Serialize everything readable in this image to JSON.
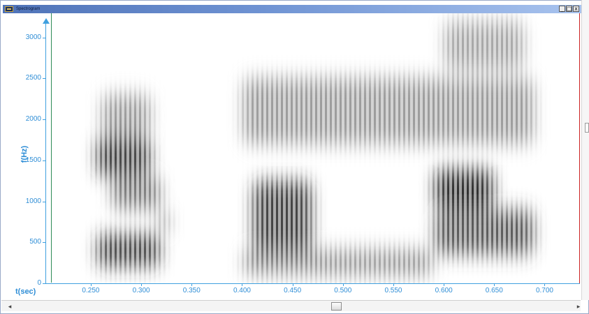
{
  "window": {
    "title": "Spectrogram",
    "minimize_symbol": "_",
    "maximize_symbol": "□",
    "close_symbol": "x",
    "icon": "spectrogram-app-icon"
  },
  "chart_data": {
    "type": "heatmap",
    "subtype": "spectrogram",
    "colormap": "grayscale (white = low energy, black = high energy)",
    "xlabel": "t(sec)",
    "ylabel": "f(Hz)",
    "xlim": [
      0.205,
      0.735
    ],
    "ylim": [
      0,
      3200
    ],
    "x_ticks": [
      "0.250",
      "0.300",
      "0.350",
      "0.400",
      "0.450",
      "0.500",
      "0.550",
      "0.600",
      "0.650",
      "0.700"
    ],
    "x_tick_values": [
      0.25,
      0.3,
      0.35,
      0.4,
      0.45,
      0.5,
      0.55,
      0.6,
      0.65,
      0.7
    ],
    "y_ticks": [
      "0",
      "500",
      "1000",
      "1500",
      "2000",
      "2500",
      "3000"
    ],
    "y_tick_values": [
      0,
      500,
      1000,
      1500,
      2000,
      2500,
      3000
    ],
    "grid": false,
    "energy_regions": [
      {
        "t": [
          0.255,
          0.32
        ],
        "f": [
          200,
          600
        ],
        "intensity": 0.85
      },
      {
        "t": [
          0.255,
          0.31
        ],
        "f": [
          1300,
          1800
        ],
        "intensity": 0.85
      },
      {
        "t": [
          0.27,
          0.32
        ],
        "f": [
          900,
          1300
        ],
        "intensity": 0.6
      },
      {
        "t": [
          0.26,
          0.31
        ],
        "f": [
          1800,
          2300
        ],
        "intensity": 0.45
      },
      {
        "t": [
          0.315,
          0.33
        ],
        "f": [
          650,
          850
        ],
        "intensity": 0.55
      },
      {
        "t": [
          0.41,
          0.47
        ],
        "f": [
          300,
          1250
        ],
        "intensity": 0.85
      },
      {
        "t": [
          0.4,
          0.59
        ],
        "f": [
          100,
          400
        ],
        "intensity": 0.5
      },
      {
        "t": [
          0.4,
          0.69
        ],
        "f": [
          1700,
          2500
        ],
        "intensity": 0.45
      },
      {
        "t": [
          0.59,
          0.65
        ],
        "f": [
          900,
          1400
        ],
        "intensity": 0.95
      },
      {
        "t": [
          0.59,
          0.69
        ],
        "f": [
          350,
          900
        ],
        "intensity": 0.75
      },
      {
        "t": [
          0.6,
          0.68
        ],
        "f": [
          2600,
          3200
        ],
        "intensity": 0.4
      }
    ],
    "markers": [
      {
        "type": "cursor-line",
        "color": "#2e8b57",
        "t": 0.208
      },
      {
        "type": "cursor-line",
        "color": "#cc2222",
        "t": 0.735
      }
    ]
  },
  "scrollbar": {
    "left_arrow": "◂",
    "right_arrow": "▸"
  }
}
